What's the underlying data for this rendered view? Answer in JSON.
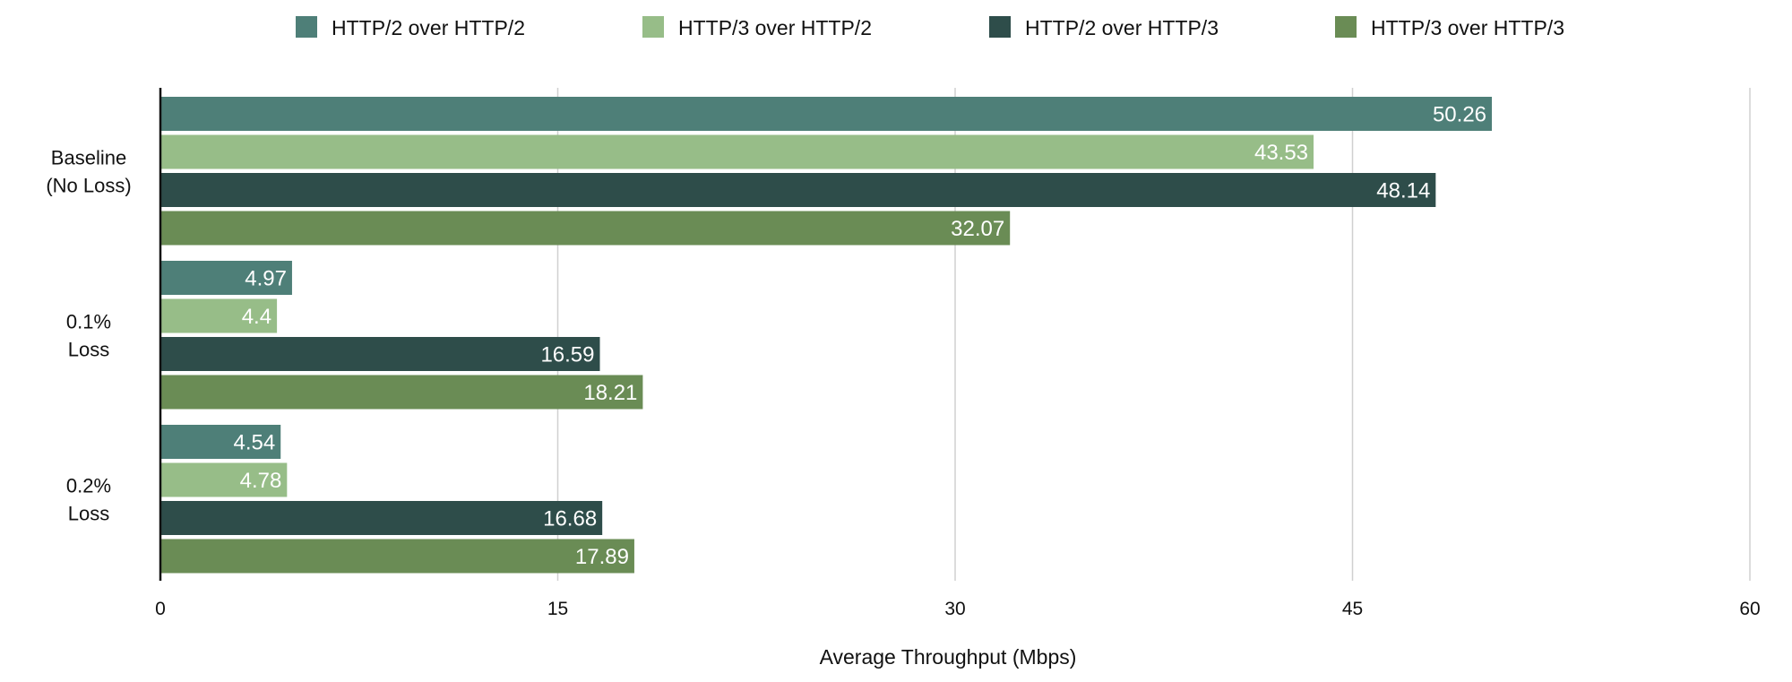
{
  "chart_data": {
    "type": "bar",
    "orientation": "horizontal",
    "categories": [
      [
        "Baseline",
        "(No Loss)"
      ],
      [
        "0.1%",
        "Loss"
      ],
      [
        "0.2%",
        "Loss"
      ]
    ],
    "series": [
      {
        "name": "HTTP/2 over HTTP/2",
        "color": "#4e7f78",
        "values": [
          50.26,
          4.97,
          4.54
        ]
      },
      {
        "name": "HTTP/3 over HTTP/2",
        "color": "#97bd88",
        "values": [
          43.53,
          4.4,
          4.78
        ]
      },
      {
        "name": "HTTP/2 over HTTP/3",
        "color": "#2e4d4a",
        "values": [
          48.14,
          16.59,
          16.68
        ]
      },
      {
        "name": "HTTP/3 over HTTP/3",
        "color": "#6a8c55",
        "values": [
          32.07,
          18.21,
          17.89
        ]
      }
    ],
    "xlabel": "Average Throughput (Mbps)",
    "ylabel": "",
    "xlim": [
      0,
      60
    ],
    "xticks": [
      0,
      15,
      30,
      45,
      60
    ],
    "grid": true,
    "legend_position": "top",
    "data_labels": true
  }
}
